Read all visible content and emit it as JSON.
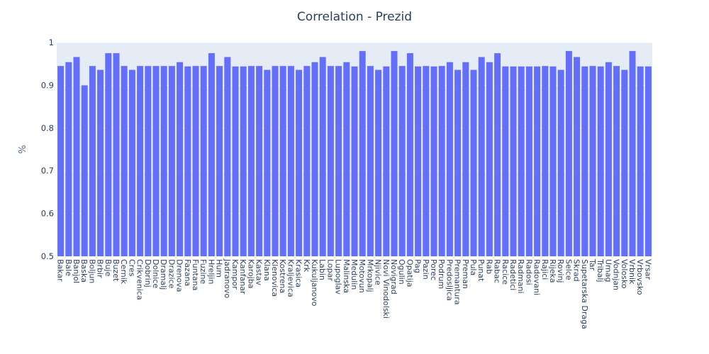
{
  "chart_data": {
    "type": "bar",
    "title": "Correlation - Prezid",
    "xlabel": "",
    "ylabel": "%",
    "ylim": [
      0.5,
      1.0
    ],
    "yticks": [
      "0.5",
      "0.6",
      "0.7",
      "0.8",
      "0.9",
      "1"
    ],
    "grid": true,
    "colors": {
      "bar": "#636efa",
      "plot_bg": "#e5ecf6",
      "text": "#2a3f5f"
    },
    "categories": [
      "Bakar",
      "Bale",
      "Banjol",
      "Baska",
      "Boljun",
      "Brbir",
      "Buje",
      "Buzet",
      "Cernik",
      "Cres",
      "Crikvenica",
      "Dobrinj",
      "Dolnice",
      "Dramalj",
      "Drazice",
      "Drenova",
      "Fazana",
      "Funtana",
      "Fuzine",
      "Hreljin",
      "Hum",
      "Jadranovo",
      "Kampor",
      "Kanfanar",
      "Karojba",
      "Kastav",
      "Klana",
      "Klenovica",
      "Kostrena",
      "Kraljevica",
      "Krasica",
      "Krk",
      "Kukuljanovo",
      "Labin",
      "Lopar",
      "Lupoglav",
      "Malinska",
      "Medulin",
      "Motovun",
      "Mrkopalj",
      "Njivice",
      "Novi Vinodolski",
      "Novigrad",
      "Ogulin",
      "Opatija",
      "Pag",
      "Pazin",
      "Porec",
      "Podrum",
      "Predosljica",
      "Premantura",
      "Preman",
      "Pula",
      "Punat",
      "Rab",
      "Rabac",
      "Racice",
      "Radetici",
      "Radmani",
      "Radosi",
      "Radovani",
      "Rajici",
      "Rijeka",
      "Rovinj",
      "Selce",
      "Skrad",
      "Supetarska Draga",
      "Tar",
      "Tribalj",
      "Umag",
      "Vodnjan",
      "Volosko",
      "Vrbnik",
      "Vrbovsko",
      "Vrsar"
    ],
    "values": [
      0.945,
      0.954,
      0.966,
      0.9,
      0.945,
      0.936,
      0.975,
      0.975,
      0.945,
      0.936,
      0.945,
      0.945,
      0.945,
      0.945,
      0.945,
      0.954,
      0.944,
      0.945,
      0.945,
      0.975,
      0.945,
      0.966,
      0.944,
      0.944,
      0.945,
      0.945,
      0.936,
      0.945,
      0.945,
      0.945,
      0.936,
      0.945,
      0.954,
      0.966,
      0.945,
      0.945,
      0.954,
      0.944,
      0.98,
      0.945,
      0.936,
      0.944,
      0.98,
      0.945,
      0.975,
      0.944,
      0.945,
      0.944,
      0.945,
      0.954,
      0.936,
      0.954,
      0.936,
      0.966,
      0.954,
      0.975,
      0.944,
      0.944,
      0.944,
      0.944,
      0.944,
      0.945,
      0.944,
      0.936,
      0.98,
      0.966,
      0.944,
      0.945,
      0.944,
      0.954,
      0.945,
      0.936,
      0.98,
      0.944,
      0.944
    ]
  }
}
